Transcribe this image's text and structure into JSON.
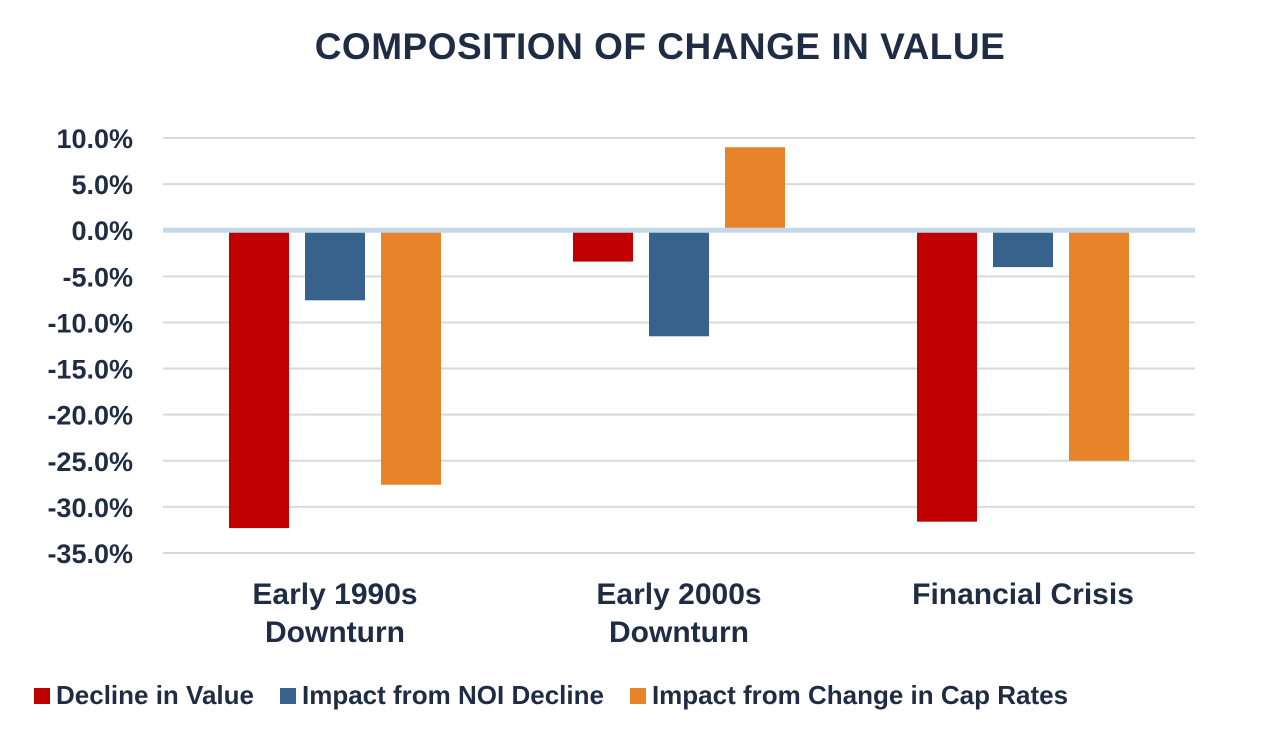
{
  "chart_data": {
    "type": "bar",
    "title": "COMPOSITION OF CHANGE IN VALUE",
    "categories": [
      "Early 1990s\nDownturn",
      "Early 2000s\nDownturn",
      "Financial Crisis"
    ],
    "series": [
      {
        "name": "Decline in Value",
        "color": "#c00000",
        "values": [
          -32.3,
          -3.4,
          -31.6
        ]
      },
      {
        "name": "Impact from NOI Decline",
        "color": "#37628c",
        "values": [
          -7.6,
          -11.5,
          -4.0
        ]
      },
      {
        "name": "Impact from Change in Cap Rates",
        "color": "#e8832a",
        "values": [
          -27.6,
          9.0,
          -25.0
        ]
      }
    ],
    "yticks": [
      "10.0%",
      "5.0%",
      "0.0%",
      "-5.0%",
      "-10.0%",
      "-15.0%",
      "-20.0%",
      "-25.0%",
      "-30.0%",
      "-35.0%"
    ],
    "ylim": [
      -35,
      10
    ],
    "grid": true,
    "legend_position": "bottom"
  }
}
